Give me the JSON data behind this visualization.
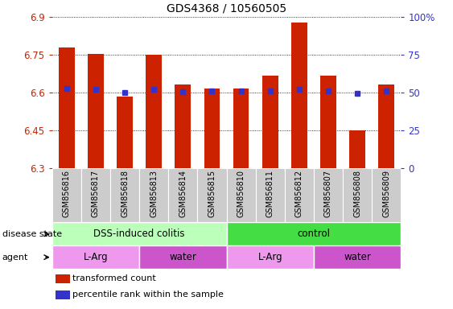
{
  "title": "GDS4368 / 10560505",
  "samples": [
    "GSM856816",
    "GSM856817",
    "GSM856818",
    "GSM856813",
    "GSM856814",
    "GSM856815",
    "GSM856810",
    "GSM856811",
    "GSM856812",
    "GSM856807",
    "GSM856808",
    "GSM856809"
  ],
  "transformed_count": [
    6.78,
    6.755,
    6.585,
    6.752,
    6.632,
    6.615,
    6.615,
    6.668,
    6.878,
    6.668,
    6.45,
    6.632
  ],
  "percentile": [
    6.615,
    6.614,
    6.601,
    6.614,
    6.605,
    6.607,
    6.607,
    6.606,
    6.614,
    6.607,
    6.597,
    6.607
  ],
  "ylim_left": [
    6.3,
    6.9
  ],
  "yticks_left": [
    6.3,
    6.45,
    6.6,
    6.75,
    6.9
  ],
  "yticks_right_labels": [
    "0",
    "25",
    "50",
    "75",
    "100%"
  ],
  "yticks_right_vals": [
    0,
    25,
    50,
    75,
    100
  ],
  "bar_color": "#cc2200",
  "dot_color": "#3333cc",
  "bar_bottom": 6.3,
  "disease_state_groups": [
    {
      "label": "DSS-induced colitis",
      "start": 0,
      "end": 6,
      "color": "#bbffbb"
    },
    {
      "label": "control",
      "start": 6,
      "end": 12,
      "color": "#44dd44"
    }
  ],
  "agent_groups": [
    {
      "label": "L-Arg",
      "start": 0,
      "end": 3,
      "color": "#ee99ee"
    },
    {
      "label": "water",
      "start": 3,
      "end": 6,
      "color": "#cc55cc"
    },
    {
      "label": "L-Arg",
      "start": 6,
      "end": 9,
      "color": "#ee99ee"
    },
    {
      "label": "water",
      "start": 9,
      "end": 12,
      "color": "#cc55cc"
    }
  ],
  "legend_red_label": "transformed count",
  "legend_blue_label": "percentile rank within the sample",
  "left_ylabel_color": "#cc2200",
  "right_ylabel_color": "#3333cc",
  "tick_label_area_color": "#cccccc",
  "disease_state_label": "disease state",
  "agent_label": "agent",
  "bar_width": 0.55
}
